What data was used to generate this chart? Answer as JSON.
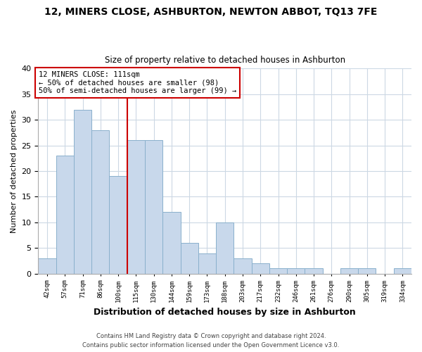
{
  "title": "12, MINERS CLOSE, ASHBURTON, NEWTON ABBOT, TQ13 7FE",
  "subtitle": "Size of property relative to detached houses in Ashburton",
  "xlabel": "Distribution of detached houses by size in Ashburton",
  "ylabel": "Number of detached properties",
  "bin_labels": [
    "42sqm",
    "57sqm",
    "71sqm",
    "86sqm",
    "100sqm",
    "115sqm",
    "130sqm",
    "144sqm",
    "159sqm",
    "173sqm",
    "188sqm",
    "203sqm",
    "217sqm",
    "232sqm",
    "246sqm",
    "261sqm",
    "276sqm",
    "290sqm",
    "305sqm",
    "319sqm",
    "334sqm"
  ],
  "bar_heights": [
    3,
    23,
    32,
    28,
    19,
    26,
    26,
    12,
    6,
    4,
    10,
    3,
    2,
    1,
    1,
    1,
    0,
    1,
    1,
    0,
    1
  ],
  "bar_color": "#c8d8eb",
  "bar_edge_color": "#8ab0cc",
  "vline_x_index": 5,
  "vline_color": "#cc0000",
  "annotation_title": "12 MINERS CLOSE: 111sqm",
  "annotation_line1": "← 50% of detached houses are smaller (98)",
  "annotation_line2": "50% of semi-detached houses are larger (99) →",
  "annotation_box_color": "#ffffff",
  "annotation_box_edge": "#cc0000",
  "ylim": [
    0,
    40
  ],
  "yticks": [
    0,
    5,
    10,
    15,
    20,
    25,
    30,
    35,
    40
  ],
  "footer_line1": "Contains HM Land Registry data © Crown copyright and database right 2024.",
  "footer_line2": "Contains public sector information licensed under the Open Government Licence v3.0.",
  "bg_color": "#ffffff",
  "grid_color": "#ccd8e4"
}
